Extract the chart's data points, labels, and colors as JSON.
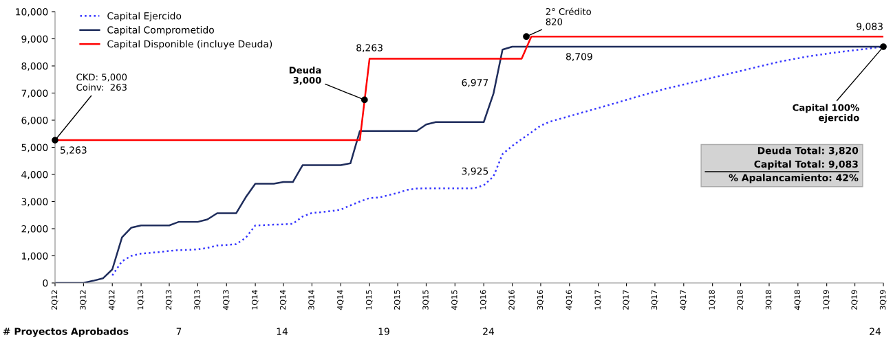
{
  "chart_data": {
    "type": "line",
    "x": [
      "2012-10",
      "2012-11",
      "2012-12",
      "2013-01",
      "2013-02",
      "2013-03",
      "2013-04",
      "2013-05",
      "2013-06",
      "2013-07",
      "2013-08",
      "2013-09",
      "2013-10",
      "2013-11",
      "2013-12",
      "2014-01",
      "2014-02",
      "2014-03",
      "2014-04",
      "2014-05",
      "2014-06",
      "2014-07",
      "2014-08",
      "2014-09",
      "2014-10",
      "2014-11",
      "2014-12",
      "2015-01",
      "2015-02",
      "2015-03",
      "2015-04",
      "2015-05",
      "2015-06",
      "2015-07",
      "2015-08",
      "2015-09",
      "2015-10",
      "2015-11",
      "2015-12",
      "2016-01",
      "2016-02",
      "2016-03",
      "2016-04",
      "2016-05",
      "2016-06",
      "2016-07",
      "2016-08",
      "2016-11",
      "2017-02",
      "2017-05",
      "2017-08",
      "2017-11",
      "2018-02",
      "2018-05",
      "2018-08",
      "2018-11",
      "2019-02",
      "2019-05",
      "2019-07"
    ],
    "series": [
      {
        "name": "Capital Ejercido",
        "color": "#3333ff",
        "line_style": "dotted",
        "values": [
          280,
          800,
          1000,
          1080,
          1110,
          1140,
          1180,
          1210,
          1220,
          1240,
          1290,
          1380,
          1400,
          1430,
          1660,
          2120,
          2130,
          2150,
          2160,
          2180,
          2450,
          2580,
          2610,
          2650,
          2700,
          2860,
          3000,
          3130,
          3150,
          3230,
          3320,
          3430,
          3480,
          3490,
          3490,
          3490,
          3490,
          3490,
          3490,
          3600,
          3925,
          4750,
          5050,
          5300,
          5550,
          5800,
          5950,
          6250,
          6550,
          6850,
          7150,
          7400,
          7650,
          7900,
          8150,
          8350,
          8500,
          8620,
          8709
        ]
      },
      {
        "name": "Capital Comprometido",
        "color": "#1f2d5c",
        "line_style": "solid",
        "x": [
          "2012-04",
          "2012-07",
          "2012-08",
          "2012-09",
          "2012-10",
          "2012-11",
          "2012-12",
          "2013-01",
          "2013-04",
          "2013-05",
          "2013-07",
          "2013-08",
          "2013-09",
          "2013-11",
          "2013-12",
          "2014-01",
          "2014-03",
          "2014-04",
          "2014-05",
          "2014-06",
          "2014-10",
          "2014-11",
          "2014-12",
          "2015-06",
          "2015-07",
          "2015-08",
          "2016-01",
          "2016-02",
          "2016-03",
          "2016-04",
          "2019-07"
        ],
        "values": [
          0,
          0,
          80,
          170,
          500,
          1680,
          2040,
          2120,
          2120,
          2250,
          2250,
          2340,
          2570,
          2570,
          3150,
          3660,
          3660,
          3720,
          3720,
          4340,
          4340,
          4410,
          5600,
          5600,
          5840,
          5930,
          5930,
          6977,
          8600,
          8709,
          8709
        ]
      },
      {
        "name": "Capital Disponible (incluye Deuda)",
        "color": "#ff0000",
        "line_style": "solid",
        "x": [
          "2012-04",
          "2014-12",
          "2015-01",
          "2016-05",
          "2016-06",
          "2019-07"
        ],
        "values": [
          5263,
          5263,
          8263,
          8263,
          9083,
          9083
        ]
      }
    ],
    "xlim": [
      "2012-04",
      "2019-07"
    ],
    "xticks": [
      {
        "value": "2012-04",
        "label": "2Q12"
      },
      {
        "value": "2012-07",
        "label": "3Q12"
      },
      {
        "value": "2012-10",
        "label": "4Q12"
      },
      {
        "value": "2013-01",
        "label": "1Q13"
      },
      {
        "value": "2013-04",
        "label": "2Q13"
      },
      {
        "value": "2013-07",
        "label": "3Q13"
      },
      {
        "value": "2013-10",
        "label": "4Q13"
      },
      {
        "value": "2014-01",
        "label": "1Q14"
      },
      {
        "value": "2014-04",
        "label": "2Q14"
      },
      {
        "value": "2014-07",
        "label": "3Q14"
      },
      {
        "value": "2014-10",
        "label": "4Q14"
      },
      {
        "value": "2015-01",
        "label": "1Q15"
      },
      {
        "value": "2015-04",
        "label": "2Q15"
      },
      {
        "value": "2015-07",
        "label": "3Q15"
      },
      {
        "value": "2015-10",
        "label": "4Q15"
      },
      {
        "value": "2016-01",
        "label": "1Q16"
      },
      {
        "value": "2016-04",
        "label": "2Q16"
      },
      {
        "value": "2016-07",
        "label": "3Q16"
      },
      {
        "value": "2016-10",
        "label": "4Q16"
      },
      {
        "value": "2017-01",
        "label": "1Q17"
      },
      {
        "value": "2017-04",
        "label": "2Q17"
      },
      {
        "value": "2017-07",
        "label": "3Q17"
      },
      {
        "value": "2017-10",
        "label": "4Q17"
      },
      {
        "value": "2018-01",
        "label": "1Q18"
      },
      {
        "value": "2018-04",
        "label": "2Q18"
      },
      {
        "value": "2018-07",
        "label": "3Q18"
      },
      {
        "value": "2018-10",
        "label": "4Q18"
      },
      {
        "value": "2019-01",
        "label": "1Q19"
      },
      {
        "value": "2019-04",
        "label": "2Q19"
      },
      {
        "value": "2019-07",
        "label": "3Q19"
      }
    ],
    "ylim": [
      0,
      10000
    ],
    "yticks": [
      0,
      {
        "value": 1000,
        "label": "1,000"
      },
      {
        "value": 2000,
        "label": "2,000"
      },
      {
        "value": 3000,
        "label": "3,000"
      },
      {
        "value": 4000,
        "label": "4,000"
      },
      {
        "value": 5000,
        "label": "5,000"
      },
      {
        "value": 6000,
        "label": "6,000"
      },
      {
        "value": 7000,
        "label": "7,000"
      },
      {
        "value": 8000,
        "label": "8,000"
      },
      {
        "value": 9000,
        "label": "9,000"
      },
      {
        "value": 10000,
        "label": "10,000"
      }
    ],
    "grid": false,
    "legend": "top left",
    "annotations": [
      {
        "text": "5,263",
        "x": "2012-04",
        "y": 5263
      },
      {
        "text": "8,263",
        "x": "2015-01",
        "y": 8263
      },
      {
        "text": "9,083",
        "x": "2019-07",
        "y": 9083
      },
      {
        "text": "8,709",
        "x": "2016-11",
        "y": 8709
      },
      {
        "text": "6,977",
        "x": "2016-02",
        "y": 6977
      },
      {
        "text": "3,925",
        "x": "2016-02",
        "y": 3925
      },
      {
        "text": "CKD: 5,000\nCoinv:  263",
        "x": "2012-04",
        "y": 5263
      },
      {
        "text": "Deuda\n3,000",
        "x": "2014-12-16",
        "y": 6750
      },
      {
        "text": "2° Crédito\n820",
        "x": "2016-05-16",
        "y": 9083
      },
      {
        "text": "Capital 100%\nejercido",
        "x": "2019-07",
        "y": 8709
      },
      "Deuda Total: 3,820",
      "Capital Total: 9,083",
      "% Apalancamiento: 42%",
      "# Proyectos Aprobados",
      "7",
      "14",
      "19",
      "24",
      "24"
    ]
  }
}
